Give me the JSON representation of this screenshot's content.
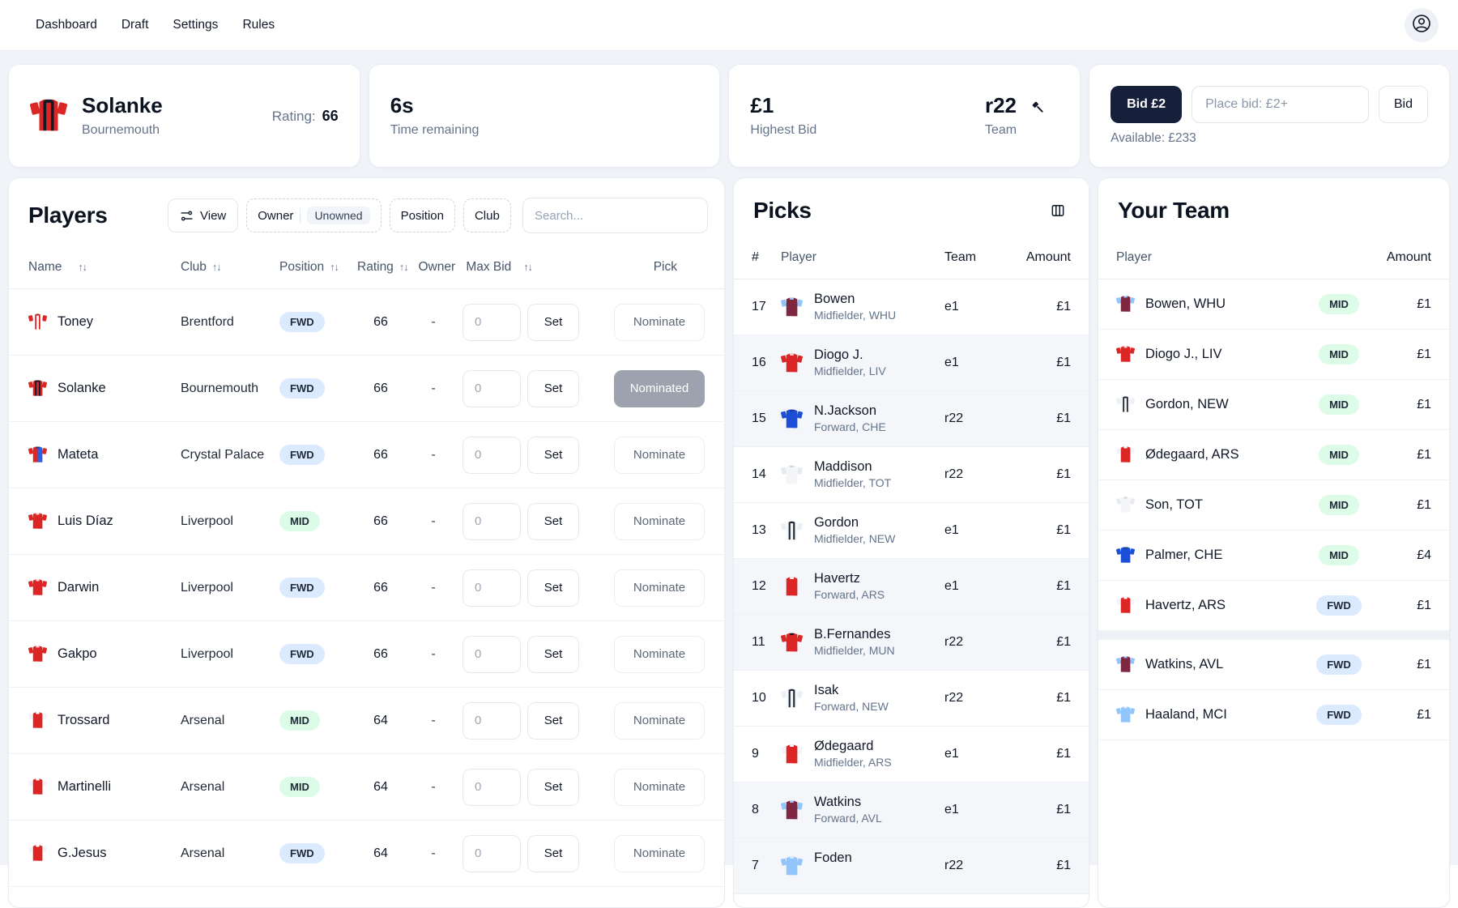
{
  "nav": {
    "items": [
      "Dashboard",
      "Draft",
      "Settings",
      "Rules"
    ]
  },
  "icons": {
    "sort": "↑↓"
  },
  "colors": {
    "page-bg": "#f0f3f8",
    "dark-button-bg": "#17203a",
    "fwd-badge-bg": "#dbeafe",
    "mid-badge-bg": "#dcfce7",
    "nominated-bg": "#9ca3af"
  },
  "auction": {
    "player": {
      "name": "Solanke",
      "club": "Bournemouth",
      "club_code": "BOU",
      "rating_label": "Rating:",
      "rating": "66"
    },
    "timer": {
      "value": "6s",
      "label": "Time remaining"
    },
    "highest_bid": {
      "value": "£1",
      "label": "Highest Bid"
    },
    "team": {
      "value": "r22",
      "label": "Team"
    },
    "bid": {
      "quick_label": "Bid £2",
      "input_placeholder": "Place bid: £2+",
      "submit_label": "Bid",
      "available": "Available: £233"
    }
  },
  "players": {
    "title": "Players",
    "view_label": "View",
    "filters": {
      "owner_label": "Owner",
      "owner_value": "Unowned",
      "position_label": "Position",
      "club_label": "Club"
    },
    "search_placeholder": "Search...",
    "columns": {
      "name": "Name",
      "club": "Club",
      "position": "Position",
      "rating": "Rating",
      "owner": "Owner",
      "max_bid": "Max Bid",
      "pick": "Pick"
    },
    "set_label": "Set",
    "rows": [
      {
        "name": "Toney",
        "club": "Brentford",
        "code": "BRE",
        "pos": "FWD",
        "rating": "66",
        "owner": "-",
        "max_bid": "0",
        "pick": "Nominate",
        "nominated": false
      },
      {
        "name": "Solanke",
        "club": "Bournemouth",
        "code": "BOU",
        "pos": "FWD",
        "rating": "66",
        "owner": "-",
        "max_bid": "0",
        "pick": "Nominated",
        "nominated": true
      },
      {
        "name": "Mateta",
        "club": "Crystal Palace",
        "code": "CRY",
        "pos": "FWD",
        "rating": "66",
        "owner": "-",
        "max_bid": "0",
        "pick": "Nominate",
        "nominated": false
      },
      {
        "name": "Luis Díaz",
        "club": "Liverpool",
        "code": "LIV",
        "pos": "MID",
        "rating": "66",
        "owner": "-",
        "max_bid": "0",
        "pick": "Nominate",
        "nominated": false
      },
      {
        "name": "Darwin",
        "club": "Liverpool",
        "code": "LIV",
        "pos": "FWD",
        "rating": "66",
        "owner": "-",
        "max_bid": "0",
        "pick": "Nominate",
        "nominated": false
      },
      {
        "name": "Gakpo",
        "club": "Liverpool",
        "code": "LIV",
        "pos": "FWD",
        "rating": "66",
        "owner": "-",
        "max_bid": "0",
        "pick": "Nominate",
        "nominated": false
      },
      {
        "name": "Trossard",
        "club": "Arsenal",
        "code": "ARS",
        "pos": "MID",
        "rating": "64",
        "owner": "-",
        "max_bid": "0",
        "pick": "Nominate",
        "nominated": false
      },
      {
        "name": "Martinelli",
        "club": "Arsenal",
        "code": "ARS",
        "pos": "MID",
        "rating": "64",
        "owner": "-",
        "max_bid": "0",
        "pick": "Nominate",
        "nominated": false
      },
      {
        "name": "G.Jesus",
        "club": "Arsenal",
        "code": "ARS",
        "pos": "FWD",
        "rating": "64",
        "owner": "-",
        "max_bid": "0",
        "pick": "Nominate",
        "nominated": false
      }
    ]
  },
  "picks": {
    "title": "Picks",
    "columns": {
      "num": "#",
      "player": "Player",
      "team": "Team",
      "amount": "Amount"
    },
    "rows": [
      {
        "num": "17",
        "name": "Bowen",
        "meta": "Midfielder, WHU",
        "code": "WHU",
        "team": "e1",
        "amount": "£1",
        "shaded": false
      },
      {
        "num": "16",
        "name": "Diogo J.",
        "meta": "Midfielder, LIV",
        "code": "LIV",
        "team": "e1",
        "amount": "£1",
        "shaded": true
      },
      {
        "num": "15",
        "name": "N.Jackson",
        "meta": "Forward, CHE",
        "code": "CHE",
        "team": "r22",
        "amount": "£1",
        "shaded": true
      },
      {
        "num": "14",
        "name": "Maddison",
        "meta": "Midfielder, TOT",
        "code": "TOT",
        "team": "r22",
        "amount": "£1",
        "shaded": false
      },
      {
        "num": "13",
        "name": "Gordon",
        "meta": "Midfielder, NEW",
        "code": "NEW",
        "team": "e1",
        "amount": "£1",
        "shaded": false
      },
      {
        "num": "12",
        "name": "Havertz",
        "meta": "Forward, ARS",
        "code": "ARS",
        "team": "e1",
        "amount": "£1",
        "shaded": true
      },
      {
        "num": "11",
        "name": "B.Fernandes",
        "meta": "Midfielder, MUN",
        "code": "MUN",
        "team": "r22",
        "amount": "£1",
        "shaded": true
      },
      {
        "num": "10",
        "name": "Isak",
        "meta": "Forward, NEW",
        "code": "NEW",
        "team": "r22",
        "amount": "£1",
        "shaded": false
      },
      {
        "num": "9",
        "name": "Ødegaard",
        "meta": "Midfielder, ARS",
        "code": "ARS",
        "team": "e1",
        "amount": "£1",
        "shaded": false
      },
      {
        "num": "8",
        "name": "Watkins",
        "meta": "Forward, AVL",
        "code": "AVL",
        "team": "e1",
        "amount": "£1",
        "shaded": true
      },
      {
        "num": "7",
        "name": "Foden",
        "meta": "",
        "code": "MCI",
        "team": "r22",
        "amount": "£1",
        "shaded": true
      }
    ]
  },
  "your_team": {
    "title": "Your Team",
    "columns": {
      "player": "Player",
      "amount": "Amount"
    },
    "rows": [
      {
        "player": "Bowen, WHU",
        "code": "WHU",
        "pos": "MID",
        "amount": "£1",
        "divider_after": false
      },
      {
        "player": "Diogo J., LIV",
        "code": "LIV",
        "pos": "MID",
        "amount": "£1",
        "divider_after": false
      },
      {
        "player": "Gordon, NEW",
        "code": "NEW",
        "pos": "MID",
        "amount": "£1",
        "divider_after": false
      },
      {
        "player": "Ødegaard, ARS",
        "code": "ARS",
        "pos": "MID",
        "amount": "£1",
        "divider_after": false
      },
      {
        "player": "Son, TOT",
        "code": "TOT",
        "pos": "MID",
        "amount": "£1",
        "divider_after": false
      },
      {
        "player": "Palmer, CHE",
        "code": "CHE",
        "pos": "MID",
        "amount": "£4",
        "divider_after": false
      },
      {
        "player": "Havertz, ARS",
        "code": "ARS",
        "pos": "FWD",
        "amount": "£1",
        "divider_after": true
      },
      {
        "player": "Watkins, AVL",
        "code": "AVL",
        "pos": "FWD",
        "amount": "£1",
        "divider_after": false
      },
      {
        "player": "Haaland, MCI",
        "code": "MCI",
        "pos": "FWD",
        "amount": "£1",
        "divider_after": false
      }
    ]
  },
  "shirt_colors": {
    "BRE": {
      "sl": "#dc2626",
      "l": "#ffffff",
      "r": "#ffffff",
      "st": "#dc2626",
      "c": "#b91c1c"
    },
    "BOU": {
      "sl": "#dc2626",
      "l": "#dc2626",
      "r": "#dc2626",
      "st": "#111827",
      "c": "#111827"
    },
    "CRY": {
      "sl": "#dc2626",
      "l": "#dc2626",
      "r": "#2563eb",
      "st": "none",
      "c": "#1e3a8a"
    },
    "LIV": {
      "sl": "#dc2626",
      "l": "#dc2626",
      "r": "#dc2626",
      "st": "none",
      "c": "#fecaca"
    },
    "ARS": {
      "sl": "#f1f5f9",
      "l": "#dc2626",
      "r": "#dc2626",
      "st": "none",
      "c": "#ffffff"
    },
    "WHU": {
      "sl": "#93c5fd",
      "l": "#7d2840",
      "r": "#7d2840",
      "st": "none",
      "c": "#93c5fd"
    },
    "CHE": {
      "sl": "#1d4ed8",
      "l": "#1d4ed8",
      "r": "#1d4ed8",
      "st": "none",
      "c": "#1e3a8a"
    },
    "TOT": {
      "sl": "#e7ebf0",
      "l": "#f3f5f8",
      "r": "#f3f5f8",
      "st": "none",
      "c": "#cbd5e1"
    },
    "NEW": {
      "sl": "#eceff3",
      "l": "#f6f7f9",
      "r": "#f6f7f9",
      "st": "#1f2937",
      "c": "#1f2937"
    },
    "MUN": {
      "sl": "#dc2626",
      "l": "#dc2626",
      "r": "#dc2626",
      "st": "none",
      "c": "#111827"
    },
    "AVL": {
      "sl": "#93c5fd",
      "l": "#7d2840",
      "r": "#7d2840",
      "st": "none",
      "c": "#93c5fd"
    },
    "MCI": {
      "sl": "#93c5fd",
      "l": "#93c5fd",
      "r": "#93c5fd",
      "st": "none",
      "c": "#dbeafe"
    }
  }
}
